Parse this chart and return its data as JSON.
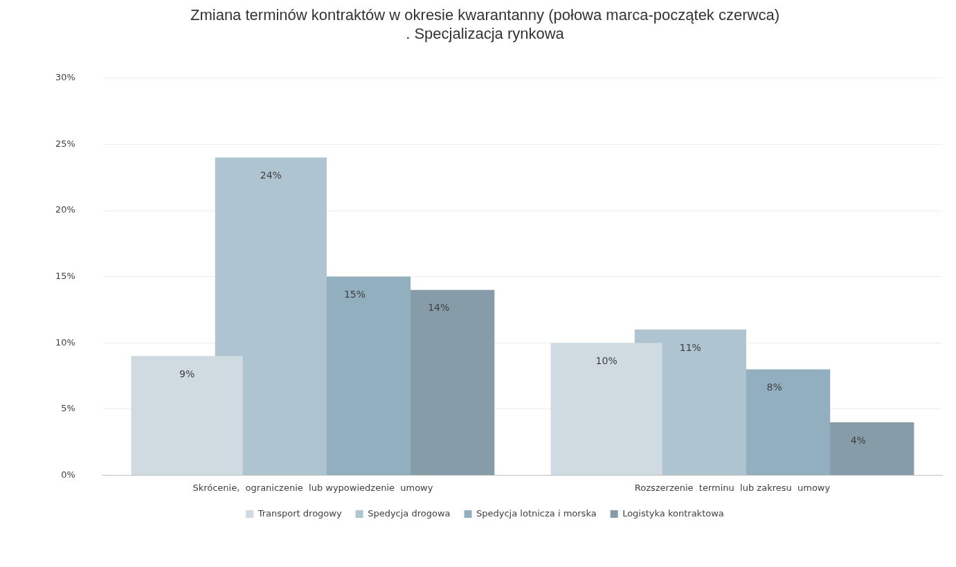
{
  "chart_data": {
    "type": "bar",
    "title": [
      "Zmiana terminów kontraktów w okresie kwarantanny (połowa marca-początek czerwca)",
      ". Specjalizacja rynkowa"
    ],
    "categories": [
      "Skrócenie,  ograniczenie  lub wypowiedzenie  umowy",
      "Rozszerzenie  terminu  lub zakresu  umowy"
    ],
    "series": [
      {
        "name": "Transport drogowy",
        "color": "#d0dae1",
        "values": [
          9,
          10
        ]
      },
      {
        "name": "Spedycja drogowa",
        "color": "#afc4d1",
        "values": [
          24,
          11
        ]
      },
      {
        "name": "Spedycja lotnicza i morska",
        "color": "#92afc0",
        "values": [
          15,
          8
        ]
      },
      {
        "name": "Logistyka kontraktowa",
        "color": "#869da9",
        "values": [
          14,
          4
        ]
      }
    ],
    "ylim": [
      0,
      30
    ],
    "yticks": [
      {
        "value": 0,
        "label": "0%"
      },
      {
        "value": 5,
        "label": "5%"
      },
      {
        "value": 10,
        "label": "10%"
      },
      {
        "value": 15,
        "label": "15%"
      },
      {
        "value": 20,
        "label": "20%"
      },
      {
        "value": 25,
        "label": "25%"
      },
      {
        "value": 30,
        "label": "30%"
      }
    ],
    "grid": "y",
    "legend": "bottom",
    "value_labels": [
      [
        "9%",
        "10%"
      ],
      [
        "24%",
        "11%"
      ],
      [
        "15%",
        "8%"
      ],
      [
        "14%",
        "4%"
      ]
    ]
  }
}
